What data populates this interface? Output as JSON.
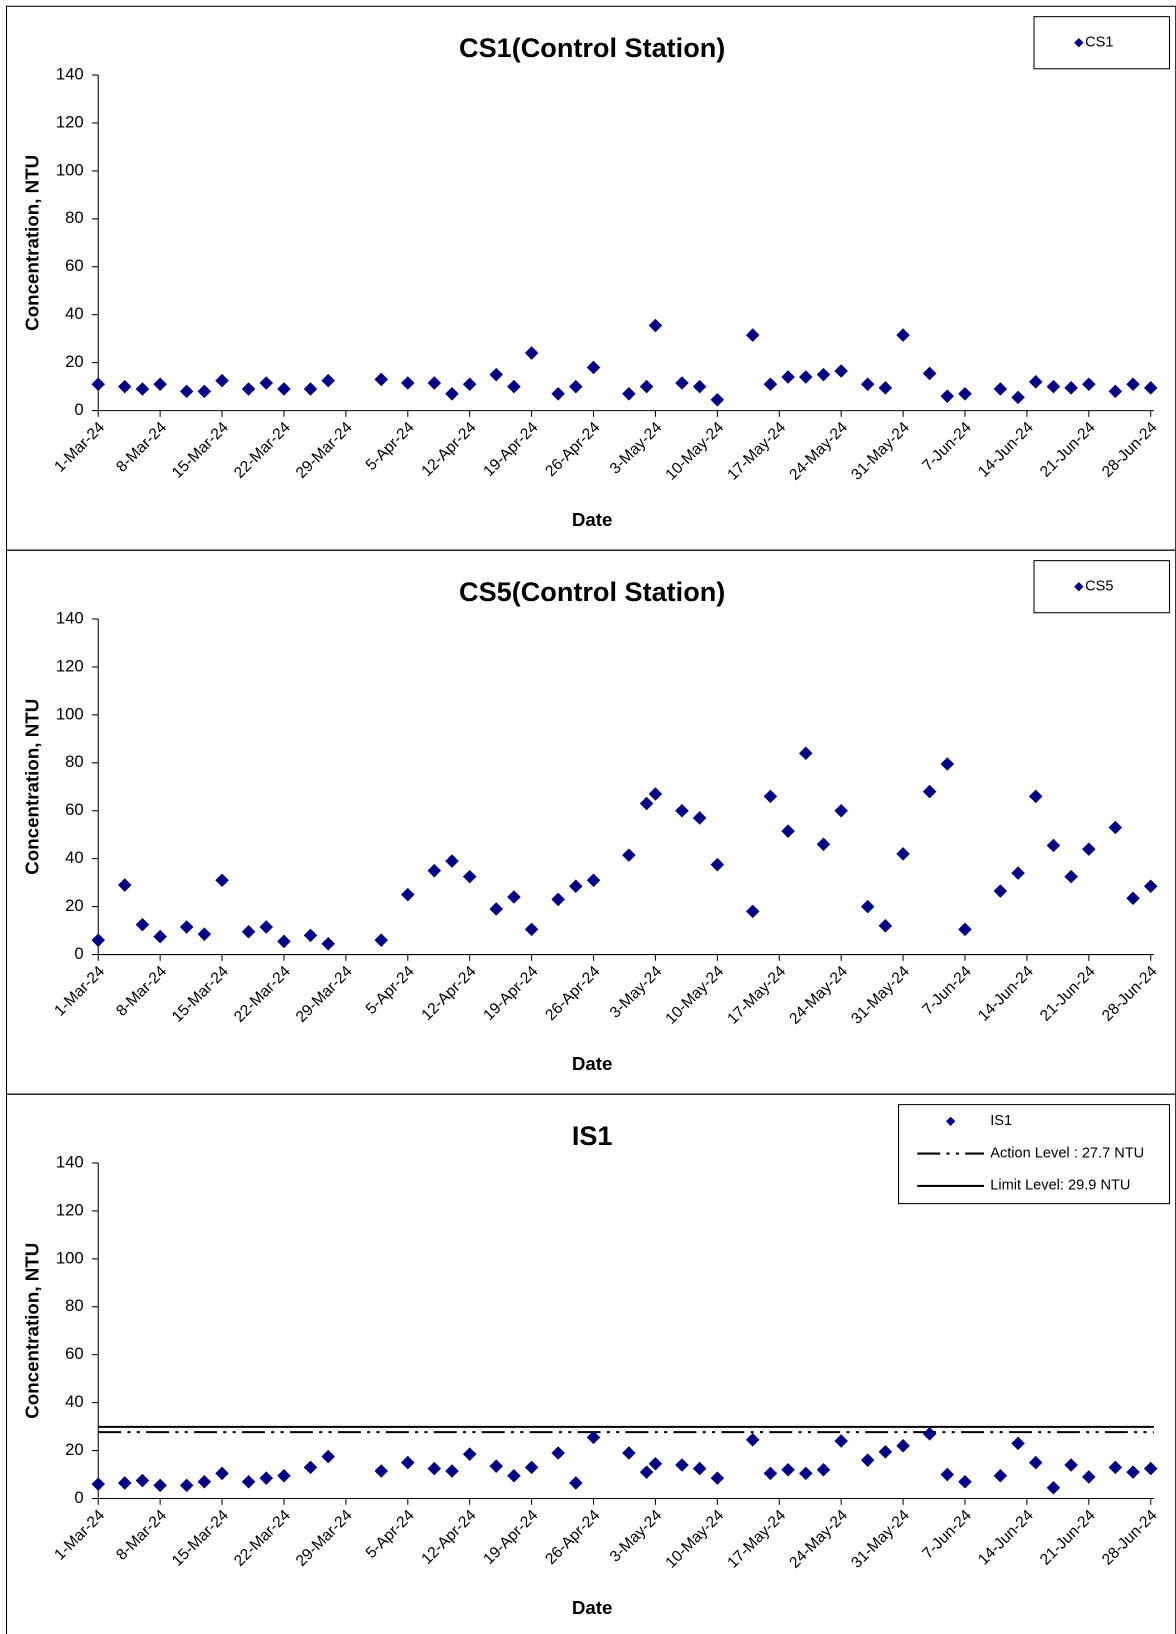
{
  "chart_data": [
    {
      "type": "scatter",
      "title": "CS1(Control Station)",
      "x_label": "Date",
      "y_label": "Concentration, NTU",
      "x": [
        "2024-03-01",
        "2024-03-04",
        "2024-03-06",
        "2024-03-08",
        "2024-03-11",
        "2024-03-13",
        "2024-03-15",
        "2024-03-18",
        "2024-03-20",
        "2024-03-22",
        "2024-03-25",
        "2024-03-27",
        "2024-04-02",
        "2024-04-05",
        "2024-04-08",
        "2024-04-10",
        "2024-04-12",
        "2024-04-15",
        "2024-04-17",
        "2024-04-19",
        "2024-04-22",
        "2024-04-24",
        "2024-04-26",
        "2024-04-30",
        "2024-05-02",
        "2024-05-03",
        "2024-05-06",
        "2024-05-08",
        "2024-05-10",
        "2024-05-14",
        "2024-05-16",
        "2024-05-18",
        "2024-05-20",
        "2024-05-22",
        "2024-05-24",
        "2024-05-27",
        "2024-05-29",
        "2024-05-31",
        "2024-06-03",
        "2024-06-05",
        "2024-06-07",
        "2024-06-11",
        "2024-06-13",
        "2024-06-15",
        "2024-06-17",
        "2024-06-19",
        "2024-06-21",
        "2024-06-24",
        "2024-06-26",
        "2024-06-28"
      ],
      "series": [
        {
          "name": "CS1",
          "color": "#000080",
          "values": [
            11,
            10,
            9,
            11,
            8,
            8,
            12.5,
            9,
            11.5,
            9,
            9,
            12.5,
            13,
            11.5,
            11.5,
            7,
            11,
            15,
            10,
            24,
            7,
            10,
            18,
            7,
            10,
            35.5,
            11.5,
            10,
            4.5,
            31.5,
            11,
            14,
            14,
            15,
            16.5,
            11,
            9.5,
            31.5,
            15.5,
            6,
            7,
            9,
            5.5,
            12,
            10,
            9.5,
            11,
            8,
            11,
            9.5
          ]
        }
      ],
      "xlim": [
        "2024-03-01",
        "2024-06-28"
      ],
      "xticks": [
        {
          "value": "2024-03-01",
          "label": "1-Mar-24"
        },
        {
          "value": "2024-03-08",
          "label": "8-Mar-24"
        },
        {
          "value": "2024-03-15",
          "label": "15-Mar-24"
        },
        {
          "value": "2024-03-22",
          "label": "22-Mar-24"
        },
        {
          "value": "2024-03-29",
          "label": "29-Mar-24"
        },
        {
          "value": "2024-04-05",
          "label": "5-Apr-24"
        },
        {
          "value": "2024-04-12",
          "label": "12-Apr-24"
        },
        {
          "value": "2024-04-19",
          "label": "19-Apr-24"
        },
        {
          "value": "2024-04-26",
          "label": "26-Apr-24"
        },
        {
          "value": "2024-05-03",
          "label": "3-May-24"
        },
        {
          "value": "2024-05-10",
          "label": "10-May-24"
        },
        {
          "value": "2024-05-17",
          "label": "17-May-24"
        },
        {
          "value": "2024-05-24",
          "label": "24-May-24"
        },
        {
          "value": "2024-05-31",
          "label": "31-May-24"
        },
        {
          "value": "2024-06-07",
          "label": "7-Jun-24"
        },
        {
          "value": "2024-06-14",
          "label": "14-Jun-24"
        },
        {
          "value": "2024-06-21",
          "label": "21-Jun-24"
        },
        {
          "value": "2024-06-28",
          "label": "28-Jun-24"
        }
      ],
      "ylim": [
        0,
        140
      ],
      "yticks": [
        0,
        20,
        40,
        60,
        80,
        100,
        120,
        140
      ],
      "legend": "upper right",
      "marker": "diamond"
    },
    {
      "type": "scatter",
      "title": "CS5(Control Station)",
      "x_label": "Date",
      "y_label": "Concentration, NTU",
      "x": [
        "2024-03-01",
        "2024-03-04",
        "2024-03-06",
        "2024-03-08",
        "2024-03-11",
        "2024-03-13",
        "2024-03-15",
        "2024-03-18",
        "2024-03-20",
        "2024-03-22",
        "2024-03-25",
        "2024-03-27",
        "2024-04-02",
        "2024-04-05",
        "2024-04-08",
        "2024-04-10",
        "2024-04-12",
        "2024-04-15",
        "2024-04-17",
        "2024-04-19",
        "2024-04-22",
        "2024-04-24",
        "2024-04-26",
        "2024-04-30",
        "2024-05-02",
        "2024-05-03",
        "2024-05-06",
        "2024-05-08",
        "2024-05-10",
        "2024-05-14",
        "2024-05-16",
        "2024-05-18",
        "2024-05-20",
        "2024-05-22",
        "2024-05-24",
        "2024-05-27",
        "2024-05-29",
        "2024-05-31",
        "2024-06-03",
        "2024-06-05",
        "2024-06-07",
        "2024-06-11",
        "2024-06-13",
        "2024-06-15",
        "2024-06-17",
        "2024-06-19",
        "2024-06-21",
        "2024-06-24",
        "2024-06-26",
        "2024-06-28"
      ],
      "series": [
        {
          "name": "CS5",
          "color": "#000080",
          "values": [
            6,
            29,
            12.5,
            7.5,
            11.5,
            8.5,
            31,
            9.5,
            11.5,
            5.5,
            8,
            4.5,
            6,
            25,
            35,
            39,
            32.5,
            19,
            24,
            10.5,
            23,
            28.5,
            31,
            41.5,
            63,
            67,
            60,
            57,
            37.5,
            18,
            66,
            51.5,
            84,
            46,
            60,
            20,
            12,
            42,
            68,
            79.5,
            10.5,
            26.5,
            34,
            66,
            45.5,
            32.5,
            44,
            53,
            23.5,
            28.5
          ]
        }
      ],
      "xlim": [
        "2024-03-01",
        "2024-06-28"
      ],
      "xticks": [
        {
          "value": "2024-03-01",
          "label": "1-Mar-24"
        },
        {
          "value": "2024-03-08",
          "label": "8-Mar-24"
        },
        {
          "value": "2024-03-15",
          "label": "15-Mar-24"
        },
        {
          "value": "2024-03-22",
          "label": "22-Mar-24"
        },
        {
          "value": "2024-03-29",
          "label": "29-Mar-24"
        },
        {
          "value": "2024-04-05",
          "label": "5-Apr-24"
        },
        {
          "value": "2024-04-12",
          "label": "12-Apr-24"
        },
        {
          "value": "2024-04-19",
          "label": "19-Apr-24"
        },
        {
          "value": "2024-04-26",
          "label": "26-Apr-24"
        },
        {
          "value": "2024-05-03",
          "label": "3-May-24"
        },
        {
          "value": "2024-05-10",
          "label": "10-May-24"
        },
        {
          "value": "2024-05-17",
          "label": "17-May-24"
        },
        {
          "value": "2024-05-24",
          "label": "24-May-24"
        },
        {
          "value": "2024-05-31",
          "label": "31-May-24"
        },
        {
          "value": "2024-06-07",
          "label": "7-Jun-24"
        },
        {
          "value": "2024-06-14",
          "label": "14-Jun-24"
        },
        {
          "value": "2024-06-21",
          "label": "21-Jun-24"
        },
        {
          "value": "2024-06-28",
          "label": "28-Jun-24"
        }
      ],
      "ylim": [
        0,
        140
      ],
      "yticks": [
        0,
        20,
        40,
        60,
        80,
        100,
        120,
        140
      ],
      "legend": "upper right",
      "marker": "diamond"
    },
    {
      "type": "scatter",
      "title": "IS1",
      "x_label": "Date",
      "y_label": "Concentration, NTU",
      "x": [
        "2024-03-01",
        "2024-03-04",
        "2024-03-06",
        "2024-03-08",
        "2024-03-11",
        "2024-03-13",
        "2024-03-15",
        "2024-03-18",
        "2024-03-20",
        "2024-03-22",
        "2024-03-25",
        "2024-03-27",
        "2024-04-02",
        "2024-04-05",
        "2024-04-08",
        "2024-04-10",
        "2024-04-12",
        "2024-04-15",
        "2024-04-17",
        "2024-04-19",
        "2024-04-22",
        "2024-04-24",
        "2024-04-26",
        "2024-04-30",
        "2024-05-02",
        "2024-05-03",
        "2024-05-06",
        "2024-05-08",
        "2024-05-10",
        "2024-05-14",
        "2024-05-16",
        "2024-05-18",
        "2024-05-20",
        "2024-05-22",
        "2024-05-24",
        "2024-05-27",
        "2024-05-29",
        "2024-05-31",
        "2024-06-03",
        "2024-06-05",
        "2024-06-07",
        "2024-06-11",
        "2024-06-13",
        "2024-06-15",
        "2024-06-17",
        "2024-06-19",
        "2024-06-21",
        "2024-06-24",
        "2024-06-26",
        "2024-06-28"
      ],
      "series": [
        {
          "name": "IS1",
          "color": "#000080",
          "values": [
            6,
            6.5,
            7.5,
            5.5,
            5.5,
            7,
            10.5,
            7,
            8.5,
            9.5,
            13,
            17.5,
            11.5,
            15,
            12.5,
            11.5,
            18.5,
            13.5,
            9.5,
            13,
            19,
            6.5,
            25.5,
            19,
            11,
            14.5,
            14,
            12.5,
            8.5,
            24.5,
            10.5,
            12,
            10.5,
            12,
            24,
            16,
            19.5,
            22,
            27,
            10,
            7,
            9.5,
            23,
            15,
            4.5,
            14,
            9,
            13,
            11,
            12.5
          ]
        }
      ],
      "reference_lines": [
        {
          "name": "Action Level : 27.7 NTU",
          "value": 27.7,
          "style": "dashdot",
          "color": "#000000"
        },
        {
          "name": "Limit Level: 29.9 NTU",
          "value": 29.9,
          "style": "solid",
          "color": "#000000"
        }
      ],
      "xlim": [
        "2024-03-01",
        "2024-06-28"
      ],
      "xticks": [
        {
          "value": "2024-03-01",
          "label": "1-Mar-24"
        },
        {
          "value": "2024-03-08",
          "label": "8-Mar-24"
        },
        {
          "value": "2024-03-15",
          "label": "15-Mar-24"
        },
        {
          "value": "2024-03-22",
          "label": "22-Mar-24"
        },
        {
          "value": "2024-03-29",
          "label": "29-Mar-24"
        },
        {
          "value": "2024-04-05",
          "label": "5-Apr-24"
        },
        {
          "value": "2024-04-12",
          "label": "12-Apr-24"
        },
        {
          "value": "2024-04-19",
          "label": "19-Apr-24"
        },
        {
          "value": "2024-04-26",
          "label": "26-Apr-24"
        },
        {
          "value": "2024-05-03",
          "label": "3-May-24"
        },
        {
          "value": "2024-05-10",
          "label": "10-May-24"
        },
        {
          "value": "2024-05-17",
          "label": "17-May-24"
        },
        {
          "value": "2024-05-24",
          "label": "24-May-24"
        },
        {
          "value": "2024-05-31",
          "label": "31-May-24"
        },
        {
          "value": "2024-06-07",
          "label": "7-Jun-24"
        },
        {
          "value": "2024-06-14",
          "label": "14-Jun-24"
        },
        {
          "value": "2024-06-21",
          "label": "21-Jun-24"
        },
        {
          "value": "2024-06-28",
          "label": "28-Jun-24"
        }
      ],
      "ylim": [
        0,
        140
      ],
      "yticks": [
        0,
        20,
        40,
        60,
        80,
        100,
        120,
        140
      ],
      "legend": "upper right",
      "marker": "diamond"
    }
  ]
}
